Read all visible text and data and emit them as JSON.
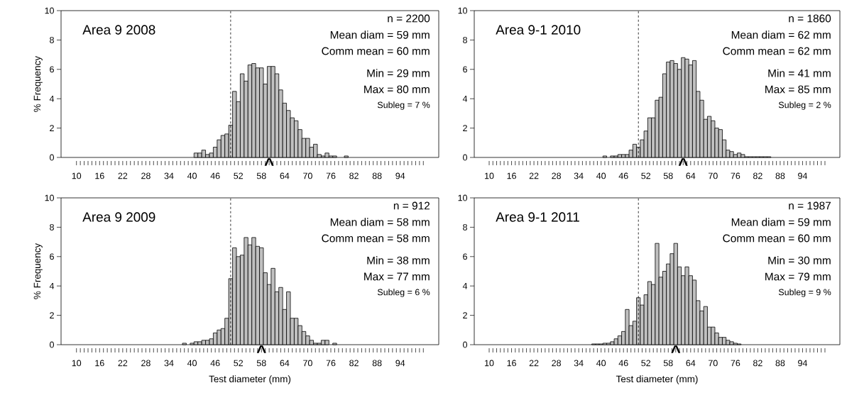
{
  "chart_data": [
    {
      "type": "histogram",
      "title": "Area 9 2008",
      "ylabel": "% Frequency",
      "color": "#c0c0c0",
      "bins": [
        40.5,
        41.5,
        42.5,
        43.5,
        44.5,
        45.5,
        46.5,
        47.5,
        48.5,
        49.5,
        50.5,
        51.5,
        52.5,
        53.5,
        54.5,
        55.5,
        56.5,
        57.5,
        58.5,
        59.5,
        60.5,
        61.5,
        62.5,
        63.5,
        64.5,
        65.5,
        66.5,
        67.5,
        68.5,
        69.5,
        70.5,
        71.5,
        72.5,
        73.5,
        74.5,
        75.5,
        76.5,
        77.5,
        78.5,
        79.5,
        80.5
      ],
      "values": [
        0.3,
        0.3,
        0.5,
        0.2,
        0.3,
        0.7,
        1.2,
        1.5,
        1.6,
        2.2,
        4.5,
        3.8,
        5.7,
        5.2,
        6.3,
        6.4,
        6.1,
        6.1,
        5.0,
        6.2,
        6.2,
        5.7,
        4.6,
        3.7,
        3.2,
        2.7,
        2.5,
        1.9,
        1.3,
        1.3,
        0.7,
        0.9,
        0.2,
        0.1,
        0.3,
        0.1,
        0.1,
        0,
        0,
        0.1
      ],
      "xlim": [
        6,
        104
      ],
      "ylim": [
        0,
        10
      ],
      "yticks": [
        0,
        2,
        4,
        6,
        8,
        10
      ],
      "xticks": [
        10,
        {
          "value": 11,
          "label": null
        },
        {
          "value": 12,
          "label": null
        },
        {
          "value": 13,
          "label": null
        },
        {
          "value": 14,
          "label": null
        },
        {
          "value": 15,
          "label": null
        },
        16,
        {
          "value": 17,
          "label": null
        },
        {
          "value": 18,
          "label": null
        },
        {
          "value": 19,
          "label": null
        },
        {
          "value": 20,
          "label": null
        },
        {
          "value": 21,
          "label": null
        },
        22,
        {
          "value": 23,
          "label": null
        },
        {
          "value": 24,
          "label": null
        },
        {
          "value": 25,
          "label": null
        },
        {
          "value": 26,
          "label": null
        },
        {
          "value": 27,
          "label": null
        },
        28,
        {
          "value": 29,
          "label": null
        },
        {
          "value": 30,
          "label": null
        },
        {
          "value": 31,
          "label": null
        },
        {
          "value": 32,
          "label": null
        },
        {
          "value": 33,
          "label": null
        },
        34,
        {
          "value": 35,
          "label": null
        },
        {
          "value": 36,
          "label": null
        },
        {
          "value": 37,
          "label": null
        },
        {
          "value": 38,
          "label": null
        },
        {
          "value": 39,
          "label": null
        },
        40,
        {
          "value": 41,
          "label": null
        },
        {
          "value": 42,
          "label": null
        },
        {
          "value": 43,
          "label": null
        },
        {
          "value": 44,
          "label": null
        },
        {
          "value": 45,
          "label": null
        },
        46,
        {
          "value": 47,
          "label": null
        },
        {
          "value": 48,
          "label": null
        },
        {
          "value": 49,
          "label": null
        },
        {
          "value": 50,
          "label": null
        },
        {
          "value": 51,
          "label": null
        },
        52,
        {
          "value": 53,
          "label": null
        },
        {
          "value": 54,
          "label": null
        },
        {
          "value": 55,
          "label": null
        },
        {
          "value": 56,
          "label": null
        },
        {
          "value": 57,
          "label": null
        },
        58,
        {
          "value": 59,
          "label": null
        },
        {
          "value": 60,
          "label": null
        },
        {
          "value": 61,
          "label": null
        },
        {
          "value": 62,
          "label": null
        },
        {
          "value": 63,
          "label": null
        },
        64,
        {
          "value": 65,
          "label": null
        },
        {
          "value": 66,
          "label": null
        },
        {
          "value": 67,
          "label": null
        },
        {
          "value": 68,
          "label": null
        },
        {
          "value": 69,
          "label": null
        },
        70,
        {
          "value": 71,
          "label": null
        },
        {
          "value": 72,
          "label": null
        },
        {
          "value": 73,
          "label": null
        },
        {
          "value": 74,
          "label": null
        },
        {
          "value": 75,
          "label": null
        },
        76,
        {
          "value": 77,
          "label": null
        },
        {
          "value": 78,
          "label": null
        },
        {
          "value": 79,
          "label": null
        },
        {
          "value": 80,
          "label": null
        },
        {
          "value": 81,
          "label": null
        },
        82,
        {
          "value": 83,
          "label": null
        },
        {
          "value": 84,
          "label": null
        },
        {
          "value": 85,
          "label": null
        },
        {
          "value": 86,
          "label": null
        },
        {
          "value": 87,
          "label": null
        },
        88,
        {
          "value": 89,
          "label": null
        },
        {
          "value": 90,
          "label": null
        },
        {
          "value": 91,
          "label": null
        },
        {
          "value": 92,
          "label": null
        },
        {
          "value": 93,
          "label": null
        },
        94,
        {
          "value": 95,
          "label": null
        },
        {
          "value": 96,
          "label": null
        },
        {
          "value": 97,
          "label": null
        },
        {
          "value": 98,
          "label": null
        },
        {
          "value": 99,
          "label": null
        },
        {
          "value": 100,
          "label": null
        }
      ],
      "ref_lines": [
        {
          "axis": "x",
          "value": 50,
          "line_style": "dashed"
        }
      ],
      "annotations": [
        "n = 2200",
        "Mean diam = 59 mm",
        "Comm mean = 60 mm",
        "Min = 29 mm",
        "Max = 80 mm",
        "Subleg = 7 %",
        {
          "text": "^",
          "x": 60,
          "y": 0
        }
      ]
    },
    {
      "type": "histogram",
      "title": "Area 9-1 2010",
      "color": "#c0c0c0",
      "bins": [
        40.5,
        41.5,
        42.5,
        43.5,
        44.5,
        45.5,
        46.5,
        47.5,
        48.5,
        49.5,
        50.5,
        51.5,
        52.5,
        53.5,
        54.5,
        55.5,
        56.5,
        57.5,
        58.5,
        59.5,
        60.5,
        61.5,
        62.5,
        63.5,
        64.5,
        65.5,
        66.5,
        67.5,
        68.5,
        69.5,
        70.5,
        71.5,
        72.5,
        73.5,
        74.5,
        75.5,
        76.5,
        77.5,
        78.5,
        79.5,
        80.5,
        81.5,
        82.5,
        83.5,
        84.5,
        85.5
      ],
      "values": [
        0.1,
        0,
        0.1,
        0.1,
        0.2,
        0.2,
        0.2,
        0.5,
        0.9,
        0.7,
        1.2,
        1.8,
        2.7,
        2.7,
        3.9,
        4.1,
        5.7,
        6.5,
        6.6,
        6.4,
        6.0,
        6.8,
        6.7,
        6.3,
        6.6,
        4.5,
        3.9,
        2.6,
        2.8,
        2.5,
        2.0,
        1.9,
        1.2,
        0.5,
        0.4,
        0.2,
        0.3,
        0.2,
        0.05,
        0.05,
        0.05,
        0.05,
        0.05,
        0.05,
        0.05
      ],
      "xlim": [
        6,
        104
      ],
      "ylim": [
        0,
        10
      ],
      "yticks": [
        0,
        2,
        4,
        6,
        8,
        10
      ],
      "xticks": [
        10,
        {
          "value": 11,
          "label": null
        },
        {
          "value": 12,
          "label": null
        },
        {
          "value": 13,
          "label": null
        },
        {
          "value": 14,
          "label": null
        },
        {
          "value": 15,
          "label": null
        },
        16,
        {
          "value": 17,
          "label": null
        },
        {
          "value": 18,
          "label": null
        },
        {
          "value": 19,
          "label": null
        },
        {
          "value": 20,
          "label": null
        },
        {
          "value": 21,
          "label": null
        },
        22,
        {
          "value": 23,
          "label": null
        },
        {
          "value": 24,
          "label": null
        },
        {
          "value": 25,
          "label": null
        },
        {
          "value": 26,
          "label": null
        },
        {
          "value": 27,
          "label": null
        },
        28,
        {
          "value": 29,
          "label": null
        },
        {
          "value": 30,
          "label": null
        },
        {
          "value": 31,
          "label": null
        },
        {
          "value": 32,
          "label": null
        },
        {
          "value": 33,
          "label": null
        },
        34,
        {
          "value": 35,
          "label": null
        },
        {
          "value": 36,
          "label": null
        },
        {
          "value": 37,
          "label": null
        },
        {
          "value": 38,
          "label": null
        },
        {
          "value": 39,
          "label": null
        },
        40,
        {
          "value": 41,
          "label": null
        },
        {
          "value": 42,
          "label": null
        },
        {
          "value": 43,
          "label": null
        },
        {
          "value": 44,
          "label": null
        },
        {
          "value": 45,
          "label": null
        },
        46,
        {
          "value": 47,
          "label": null
        },
        {
          "value": 48,
          "label": null
        },
        {
          "value": 49,
          "label": null
        },
        {
          "value": 50,
          "label": null
        },
        {
          "value": 51,
          "label": null
        },
        52,
        {
          "value": 53,
          "label": null
        },
        {
          "value": 54,
          "label": null
        },
        {
          "value": 55,
          "label": null
        },
        {
          "value": 56,
          "label": null
        },
        {
          "value": 57,
          "label": null
        },
        58,
        {
          "value": 59,
          "label": null
        },
        {
          "value": 60,
          "label": null
        },
        {
          "value": 61,
          "label": null
        },
        {
          "value": 62,
          "label": null
        },
        {
          "value": 63,
          "label": null
        },
        64,
        {
          "value": 65,
          "label": null
        },
        {
          "value": 66,
          "label": null
        },
        {
          "value": 67,
          "label": null
        },
        {
          "value": 68,
          "label": null
        },
        {
          "value": 69,
          "label": null
        },
        70,
        {
          "value": 71,
          "label": null
        },
        {
          "value": 72,
          "label": null
        },
        {
          "value": 73,
          "label": null
        },
        {
          "value": 74,
          "label": null
        },
        {
          "value": 75,
          "label": null
        },
        76,
        {
          "value": 77,
          "label": null
        },
        {
          "value": 78,
          "label": null
        },
        {
          "value": 79,
          "label": null
        },
        {
          "value": 80,
          "label": null
        },
        {
          "value": 81,
          "label": null
        },
        82,
        {
          "value": 83,
          "label": null
        },
        {
          "value": 84,
          "label": null
        },
        {
          "value": 85,
          "label": null
        },
        {
          "value": 86,
          "label": null
        },
        {
          "value": 87,
          "label": null
        },
        88,
        {
          "value": 89,
          "label": null
        },
        {
          "value": 90,
          "label": null
        },
        {
          "value": 91,
          "label": null
        },
        {
          "value": 92,
          "label": null
        },
        {
          "value": 93,
          "label": null
        },
        94,
        {
          "value": 95,
          "label": null
        },
        {
          "value": 96,
          "label": null
        },
        {
          "value": 97,
          "label": null
        },
        {
          "value": 98,
          "label": null
        },
        {
          "value": 99,
          "label": null
        },
        {
          "value": 100,
          "label": null
        }
      ],
      "ref_lines": [
        {
          "axis": "x",
          "value": 50,
          "line_style": "dashed"
        }
      ],
      "annotations": [
        "n = 1860",
        "Mean diam = 62 mm",
        "Comm mean = 62 mm",
        "Min = 41 mm",
        "Max = 85 mm",
        "Subleg = 2 %",
        {
          "text": "^",
          "x": 62,
          "y": 0
        }
      ]
    },
    {
      "type": "histogram",
      "title": "Area 9 2009",
      "ylabel": "% Frequency",
      "xlabel": "Test diameter (mm)",
      "color": "#c0c0c0",
      "bins": [
        37.5,
        38.5,
        39.5,
        40.5,
        41.5,
        42.5,
        43.5,
        44.5,
        45.5,
        46.5,
        47.5,
        48.5,
        49.5,
        50.5,
        51.5,
        52.5,
        53.5,
        54.5,
        55.5,
        56.5,
        57.5,
        58.5,
        59.5,
        60.5,
        61.5,
        62.5,
        63.5,
        64.5,
        65.5,
        66.5,
        67.5,
        68.5,
        69.5,
        70.5,
        71.5,
        72.5,
        73.5,
        74.5,
        75.5,
        76.5,
        77.5
      ],
      "values": [
        0.1,
        0,
        0.1,
        0.2,
        0.2,
        0.3,
        0.3,
        0.4,
        0.8,
        1.0,
        1.1,
        1.8,
        4.5,
        6.6,
        6.0,
        6.1,
        7.3,
        6.8,
        7.3,
        6.7,
        6.6,
        4.9,
        4.1,
        5.2,
        3.6,
        3.9,
        2.4,
        3.6,
        1.8,
        1.8,
        1.3,
        0.9,
        0.6,
        0.3,
        0.1,
        0.1,
        0.3,
        0.3,
        0,
        0.1
      ],
      "xlim": [
        6,
        104
      ],
      "ylim": [
        0,
        10
      ],
      "yticks": [
        0,
        2,
        4,
        6,
        8,
        10
      ],
      "xticks": [
        10,
        {
          "value": 11,
          "label": null
        },
        {
          "value": 12,
          "label": null
        },
        {
          "value": 13,
          "label": null
        },
        {
          "value": 14,
          "label": null
        },
        {
          "value": 15,
          "label": null
        },
        16,
        {
          "value": 17,
          "label": null
        },
        {
          "value": 18,
          "label": null
        },
        {
          "value": 19,
          "label": null
        },
        {
          "value": 20,
          "label": null
        },
        {
          "value": 21,
          "label": null
        },
        22,
        {
          "value": 23,
          "label": null
        },
        {
          "value": 24,
          "label": null
        },
        {
          "value": 25,
          "label": null
        },
        {
          "value": 26,
          "label": null
        },
        {
          "value": 27,
          "label": null
        },
        28,
        {
          "value": 29,
          "label": null
        },
        {
          "value": 30,
          "label": null
        },
        {
          "value": 31,
          "label": null
        },
        {
          "value": 32,
          "label": null
        },
        {
          "value": 33,
          "label": null
        },
        34,
        {
          "value": 35,
          "label": null
        },
        {
          "value": 36,
          "label": null
        },
        {
          "value": 37,
          "label": null
        },
        {
          "value": 38,
          "label": null
        },
        {
          "value": 39,
          "label": null
        },
        40,
        {
          "value": 41,
          "label": null
        },
        {
          "value": 42,
          "label": null
        },
        {
          "value": 43,
          "label": null
        },
        {
          "value": 44,
          "label": null
        },
        {
          "value": 45,
          "label": null
        },
        46,
        {
          "value": 47,
          "label": null
        },
        {
          "value": 48,
          "label": null
        },
        {
          "value": 49,
          "label": null
        },
        {
          "value": 50,
          "label": null
        },
        {
          "value": 51,
          "label": null
        },
        52,
        {
          "value": 53,
          "label": null
        },
        {
          "value": 54,
          "label": null
        },
        {
          "value": 55,
          "label": null
        },
        {
          "value": 56,
          "label": null
        },
        {
          "value": 57,
          "label": null
        },
        58,
        {
          "value": 59,
          "label": null
        },
        {
          "value": 60,
          "label": null
        },
        {
          "value": 61,
          "label": null
        },
        {
          "value": 62,
          "label": null
        },
        {
          "value": 63,
          "label": null
        },
        64,
        {
          "value": 65,
          "label": null
        },
        {
          "value": 66,
          "label": null
        },
        {
          "value": 67,
          "label": null
        },
        {
          "value": 68,
          "label": null
        },
        {
          "value": 69,
          "label": null
        },
        70,
        {
          "value": 71,
          "label": null
        },
        {
          "value": 72,
          "label": null
        },
        {
          "value": 73,
          "label": null
        },
        {
          "value": 74,
          "label": null
        },
        {
          "value": 75,
          "label": null
        },
        76,
        {
          "value": 77,
          "label": null
        },
        {
          "value": 78,
          "label": null
        },
        {
          "value": 79,
          "label": null
        },
        {
          "value": 80,
          "label": null
        },
        {
          "value": 81,
          "label": null
        },
        82,
        {
          "value": 83,
          "label": null
        },
        {
          "value": 84,
          "label": null
        },
        {
          "value": 85,
          "label": null
        },
        {
          "value": 86,
          "label": null
        },
        {
          "value": 87,
          "label": null
        },
        88,
        {
          "value": 89,
          "label": null
        },
        {
          "value": 90,
          "label": null
        },
        {
          "value": 91,
          "label": null
        },
        {
          "value": 92,
          "label": null
        },
        {
          "value": 93,
          "label": null
        },
        94,
        {
          "value": 95,
          "label": null
        },
        {
          "value": 96,
          "label": null
        },
        {
          "value": 97,
          "label": null
        },
        {
          "value": 98,
          "label": null
        },
        {
          "value": 99,
          "label": null
        },
        {
          "value": 100,
          "label": null
        }
      ],
      "ref_lines": [
        {
          "axis": "x",
          "value": 50,
          "line_style": "dashed"
        }
      ],
      "annotations": [
        "n = 912",
        "Mean diam = 58 mm",
        "Comm mean = 58 mm",
        "Min = 38 mm",
        "Max = 77 mm",
        "Subleg = 6 %",
        {
          "text": "^",
          "x": 58,
          "y": 0
        }
      ]
    },
    {
      "type": "histogram",
      "title": "Area 9-1 2011",
      "xlabel": "Test diameter (mm)",
      "color": "#c0c0c0",
      "bins": [
        37.5,
        38.5,
        39.5,
        40.5,
        41.5,
        42.5,
        43.5,
        44.5,
        45.5,
        46.5,
        47.5,
        48.5,
        49.5,
        50.5,
        51.5,
        52.5,
        53.5,
        54.5,
        55.5,
        56.5,
        57.5,
        58.5,
        59.5,
        60.5,
        61.5,
        62.5,
        63.5,
        64.5,
        65.5,
        66.5,
        67.5,
        68.5,
        69.5,
        70.5,
        71.5,
        72.5,
        73.5,
        74.5,
        75.5,
        76.5,
        77.5
      ],
      "values": [
        0.05,
        0.05,
        0.05,
        0.1,
        0.1,
        0.2,
        0.4,
        0.6,
        0.9,
        2.4,
        1.3,
        1.6,
        3.2,
        2.7,
        3.4,
        4.3,
        4.1,
        6.9,
        4.6,
        5.0,
        5.5,
        6.2,
        6.9,
        5.3,
        4.7,
        5.3,
        4.7,
        4.4,
        3.0,
        2.3,
        2.6,
        1.2,
        1.2,
        0.8,
        0.5,
        0.5,
        0.3,
        0.2,
        0.1,
        0.05
      ],
      "xlim": [
        6,
        104
      ],
      "ylim": [
        0,
        10
      ],
      "yticks": [
        0,
        2,
        4,
        6,
        8,
        10
      ],
      "xticks": [
        10,
        {
          "value": 11,
          "label": null
        },
        {
          "value": 12,
          "label": null
        },
        {
          "value": 13,
          "label": null
        },
        {
          "value": 14,
          "label": null
        },
        {
          "value": 15,
          "label": null
        },
        16,
        {
          "value": 17,
          "label": null
        },
        {
          "value": 18,
          "label": null
        },
        {
          "value": 19,
          "label": null
        },
        {
          "value": 20,
          "label": null
        },
        {
          "value": 21,
          "label": null
        },
        22,
        {
          "value": 23,
          "label": null
        },
        {
          "value": 24,
          "label": null
        },
        {
          "value": 25,
          "label": null
        },
        {
          "value": 26,
          "label": null
        },
        {
          "value": 27,
          "label": null
        },
        28,
        {
          "value": 29,
          "label": null
        },
        {
          "value": 30,
          "label": null
        },
        {
          "value": 31,
          "label": null
        },
        {
          "value": 32,
          "label": null
        },
        {
          "value": 33,
          "label": null
        },
        34,
        {
          "value": 35,
          "label": null
        },
        {
          "value": 36,
          "label": null
        },
        {
          "value": 37,
          "label": null
        },
        {
          "value": 38,
          "label": null
        },
        {
          "value": 39,
          "label": null
        },
        40,
        {
          "value": 41,
          "label": null
        },
        {
          "value": 42,
          "label": null
        },
        {
          "value": 43,
          "label": null
        },
        {
          "value": 44,
          "label": null
        },
        {
          "value": 45,
          "label": null
        },
        46,
        {
          "value": 47,
          "label": null
        },
        {
          "value": 48,
          "label": null
        },
        {
          "value": 49,
          "label": null
        },
        {
          "value": 50,
          "label": null
        },
        {
          "value": 51,
          "label": null
        },
        52,
        {
          "value": 53,
          "label": null
        },
        {
          "value": 54,
          "label": null
        },
        {
          "value": 55,
          "label": null
        },
        {
          "value": 56,
          "label": null
        },
        {
          "value": 57,
          "label": null
        },
        58,
        {
          "value": 59,
          "label": null
        },
        {
          "value": 60,
          "label": null
        },
        {
          "value": 61,
          "label": null
        },
        {
          "value": 62,
          "label": null
        },
        {
          "value": 63,
          "label": null
        },
        64,
        {
          "value": 65,
          "label": null
        },
        {
          "value": 66,
          "label": null
        },
        {
          "value": 67,
          "label": null
        },
        {
          "value": 68,
          "label": null
        },
        {
          "value": 69,
          "label": null
        },
        70,
        {
          "value": 71,
          "label": null
        },
        {
          "value": 72,
          "label": null
        },
        {
          "value": 73,
          "label": null
        },
        {
          "value": 74,
          "label": null
        },
        {
          "value": 75,
          "label": null
        },
        76,
        {
          "value": 77,
          "label": null
        },
        {
          "value": 78,
          "label": null
        },
        {
          "value": 79,
          "label": null
        },
        {
          "value": 80,
          "label": null
        },
        {
          "value": 81,
          "label": null
        },
        82,
        {
          "value": 83,
          "label": null
        },
        {
          "value": 84,
          "label": null
        },
        {
          "value": 85,
          "label": null
        },
        {
          "value": 86,
          "label": null
        },
        {
          "value": 87,
          "label": null
        },
        88,
        {
          "value": 89,
          "label": null
        },
        {
          "value": 90,
          "label": null
        },
        {
          "value": 91,
          "label": null
        },
        {
          "value": 92,
          "label": null
        },
        {
          "value": 93,
          "label": null
        },
        94,
        {
          "value": 95,
          "label": null
        },
        {
          "value": 96,
          "label": null
        },
        {
          "value": 97,
          "label": null
        },
        {
          "value": 98,
          "label": null
        },
        {
          "value": 99,
          "label": null
        },
        {
          "value": 100,
          "label": null
        }
      ],
      "ref_lines": [
        {
          "axis": "x",
          "value": 50,
          "line_style": "dashed"
        }
      ],
      "annotations": [
        "n = 1987",
        "Mean diam = 59 mm",
        "Comm mean = 60 mm",
        "Min = 30 mm",
        "Max = 79 mm",
        "Subleg = 9 %",
        {
          "text": "^",
          "x": 60,
          "y": 0
        }
      ]
    }
  ]
}
